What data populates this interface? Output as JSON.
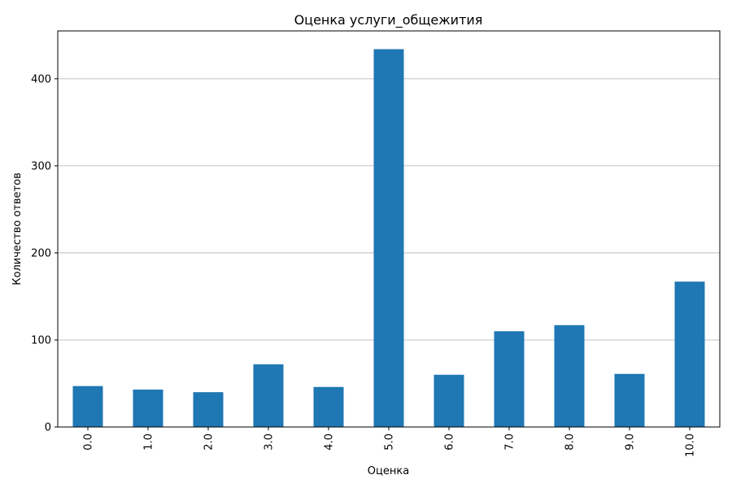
{
  "chart_data": {
    "type": "bar",
    "title": "Оценка услуги_общежития",
    "xlabel": "Оценка",
    "ylabel": "Количество ответов",
    "categories": [
      "0.0",
      "1.0",
      "2.0",
      "3.0",
      "4.0",
      "5.0",
      "6.0",
      "7.0",
      "8.0",
      "9.0",
      "10.0"
    ],
    "values": [
      47,
      43,
      40,
      72,
      46,
      434,
      60,
      110,
      117,
      61,
      167
    ],
    "ylim": [
      0,
      455
    ],
    "yticks": [
      0,
      100,
      200,
      300,
      400
    ],
    "grid": "y",
    "bar_color": "#1f77b4"
  }
}
